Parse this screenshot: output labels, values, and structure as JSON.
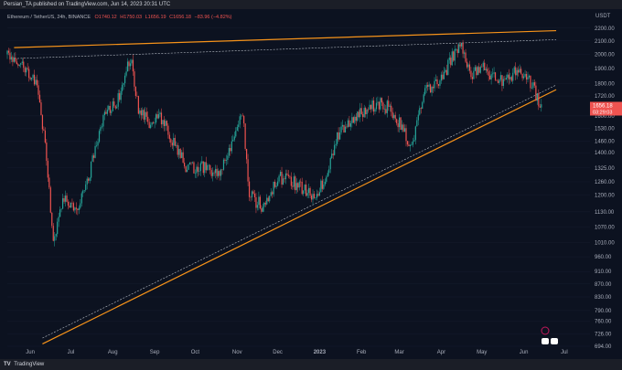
{
  "header": {
    "publish_line": "Persian_TA published on TradingView.com, Jun 14, 2023 20:31 UTC"
  },
  "footer": {
    "brand": "TradingView"
  },
  "colors": {
    "background": "#0c1220",
    "bull": "#26a69a",
    "bear": "#ef5350",
    "trendline": "#f7931a",
    "dashed": "#b7bdc6",
    "price_tag": "#ef5350"
  },
  "chart_data": {
    "type": "candlestick",
    "symbol_line": "Ethereum / TetherUS, 24h, BINANCE",
    "ohlc": {
      "open": "O1740.12",
      "high": "H1750.03",
      "low": "L1656.19",
      "close": "C1656.18",
      "change": "−83.96 (−4.82%)"
    },
    "y_axis": {
      "unit": "USDT",
      "scale": "log",
      "ticks": [
        "2200.00",
        "2100.00",
        "2000.00",
        "1900.00",
        "1800.00",
        "1720.00",
        "1600.00",
        "1530.00",
        "1460.00",
        "1400.00",
        "1325.00",
        "1260.00",
        "1200.00",
        "1130.00",
        "1070.00",
        "1010.00",
        "960.00",
        "910.00",
        "870.00",
        "830.00",
        "790.00",
        "760.00",
        "726.00",
        "694.00"
      ],
      "range": [
        694,
        2250
      ]
    },
    "x_axis": {
      "ticks": [
        "Jun",
        "Jul",
        "Aug",
        "Sep",
        "Oct",
        "Nov",
        "Dec",
        "2023",
        "Feb",
        "Mar",
        "Apr",
        "May",
        "Jun",
        "Jul"
      ],
      "start": "2022-05-15",
      "end": "2023-07-20"
    },
    "last_price": {
      "value": "1656.18",
      "countdown": "03:29:03"
    },
    "candles_approx": [
      {
        "date": "2022-05-15",
        "close": 2000
      },
      {
        "date": "2022-05-25",
        "close": 1950
      },
      {
        "date": "2022-06-05",
        "close": 1800
      },
      {
        "date": "2022-06-12",
        "close": 1450
      },
      {
        "date": "2022-06-18",
        "close": 1000
      },
      {
        "date": "2022-06-25",
        "close": 1200
      },
      {
        "date": "2022-07-05",
        "close": 1130
      },
      {
        "date": "2022-07-15",
        "close": 1300
      },
      {
        "date": "2022-07-25",
        "close": 1600
      },
      {
        "date": "2022-08-05",
        "close": 1700
      },
      {
        "date": "2022-08-14",
        "close": 1980
      },
      {
        "date": "2022-08-20",
        "close": 1620
      },
      {
        "date": "2022-08-30",
        "close": 1550
      },
      {
        "date": "2022-09-05",
        "close": 1600
      },
      {
        "date": "2022-09-15",
        "close": 1450
      },
      {
        "date": "2022-09-25",
        "close": 1320
      },
      {
        "date": "2022-10-05",
        "close": 1330
      },
      {
        "date": "2022-10-20",
        "close": 1300
      },
      {
        "date": "2022-11-05",
        "close": 1600
      },
      {
        "date": "2022-11-10",
        "close": 1200
      },
      {
        "date": "2022-11-20",
        "close": 1150
      },
      {
        "date": "2022-12-01",
        "close": 1280
      },
      {
        "date": "2022-12-15",
        "close": 1250
      },
      {
        "date": "2022-12-25",
        "close": 1200
      },
      {
        "date": "2023-01-05",
        "close": 1250
      },
      {
        "date": "2023-01-15",
        "close": 1500
      },
      {
        "date": "2023-01-25",
        "close": 1580
      },
      {
        "date": "2023-02-05",
        "close": 1640
      },
      {
        "date": "2023-02-15",
        "close": 1680
      },
      {
        "date": "2023-02-25",
        "close": 1620
      },
      {
        "date": "2023-03-10",
        "close": 1420
      },
      {
        "date": "2023-03-20",
        "close": 1750
      },
      {
        "date": "2023-04-01",
        "close": 1820
      },
      {
        "date": "2023-04-15",
        "close": 2100
      },
      {
        "date": "2023-04-22",
        "close": 1850
      },
      {
        "date": "2023-05-01",
        "close": 1900
      },
      {
        "date": "2023-05-15",
        "close": 1820
      },
      {
        "date": "2023-05-28",
        "close": 1880
      },
      {
        "date": "2023-06-05",
        "close": 1820
      },
      {
        "date": "2023-06-14",
        "close": 1656
      }
    ],
    "trendlines": [
      {
        "name": "upper",
        "style": "solid",
        "from": {
          "date": "2022-05-20",
          "price": 2050
        },
        "to": {
          "date": "2023-06-25",
          "price": 2180
        }
      },
      {
        "name": "lower",
        "style": "solid",
        "from": {
          "date": "2022-06-10",
          "price": 700
        },
        "to": {
          "date": "2023-06-25",
          "price": 1760
        }
      },
      {
        "name": "upper-dashed",
        "style": "dashed",
        "from": {
          "date": "2022-05-20",
          "price": 1970
        },
        "to": {
          "date": "2023-06-25",
          "price": 2110
        }
      },
      {
        "name": "lower-dashed",
        "style": "dashed",
        "from": {
          "date": "2022-06-10",
          "price": 715
        },
        "to": {
          "date": "2023-06-25",
          "price": 1790
        }
      }
    ]
  }
}
